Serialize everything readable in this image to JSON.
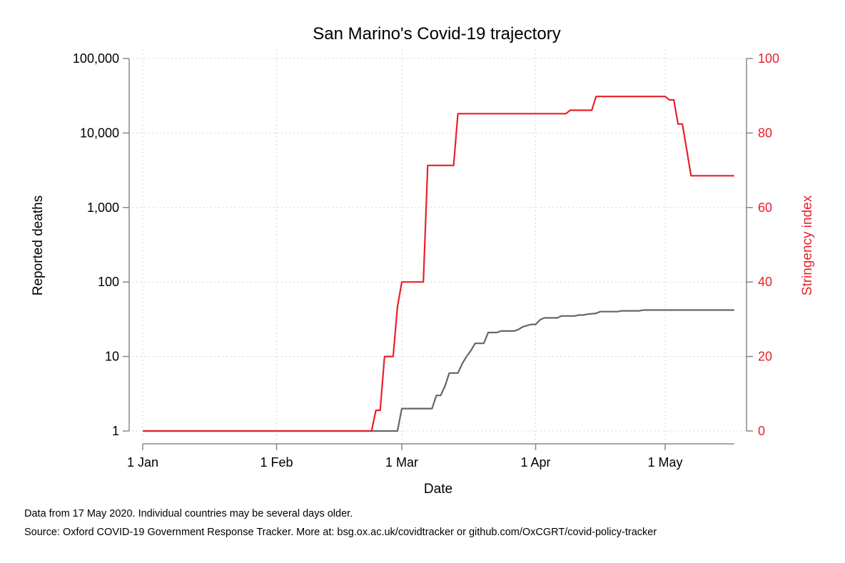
{
  "chart_data": {
    "type": "line",
    "title": "San Marino's Covid-19 trajectory",
    "xlabel": "Date",
    "ylabel_left": "Reported deaths",
    "ylabel_right": "Stringency index",
    "x_ticks": [
      {
        "date": "2020-01-01",
        "label": "1 Jan"
      },
      {
        "date": "2020-02-01",
        "label": "1 Feb"
      },
      {
        "date": "2020-03-01",
        "label": "1 Mar"
      },
      {
        "date": "2020-04-01",
        "label": "1 Apr"
      },
      {
        "date": "2020-05-01",
        "label": "1 May"
      }
    ],
    "xlim": [
      "2020-01-01",
      "2020-05-17"
    ],
    "y_left": {
      "scale": "log",
      "lim": [
        1,
        100000
      ],
      "ticks": [
        1,
        10,
        100,
        1000,
        10000,
        100000
      ],
      "tick_labels": [
        "1",
        "10",
        "100",
        "1,000",
        "10,000",
        "100,000"
      ]
    },
    "y_right": {
      "scale": "linear",
      "lim": [
        0,
        100
      ],
      "ticks": [
        0,
        20,
        40,
        60,
        80,
        100
      ],
      "tick_labels": [
        "0",
        "20",
        "40",
        "60",
        "80",
        "100"
      ]
    },
    "grid": true,
    "series": [
      {
        "axis": "left",
        "color": "#666666",
        "points": [
          [
            "2020-01-01",
            1
          ],
          [
            "2020-02-29",
            1
          ],
          [
            "2020-03-01",
            2
          ],
          [
            "2020-03-08",
            2
          ],
          [
            "2020-03-09",
            3
          ],
          [
            "2020-03-10",
            3
          ],
          [
            "2020-03-11",
            4
          ],
          [
            "2020-03-12",
            6
          ],
          [
            "2020-03-14",
            6
          ],
          [
            "2020-03-15",
            8
          ],
          [
            "2020-03-16",
            10
          ],
          [
            "2020-03-17",
            12
          ],
          [
            "2020-03-18",
            15
          ],
          [
            "2020-03-20",
            15
          ],
          [
            "2020-03-21",
            21
          ],
          [
            "2020-03-23",
            21
          ],
          [
            "2020-03-24",
            22
          ],
          [
            "2020-03-27",
            22
          ],
          [
            "2020-03-28",
            23
          ],
          [
            "2020-03-29",
            25
          ],
          [
            "2020-03-30",
            26
          ],
          [
            "2020-03-31",
            27
          ],
          [
            "2020-04-01",
            27
          ],
          [
            "2020-04-02",
            31
          ],
          [
            "2020-04-03",
            33
          ],
          [
            "2020-04-06",
            33
          ],
          [
            "2020-04-07",
            35
          ],
          [
            "2020-04-10",
            35
          ],
          [
            "2020-04-11",
            36
          ],
          [
            "2020-04-12",
            36
          ],
          [
            "2020-04-13",
            37
          ],
          [
            "2020-04-15",
            38
          ],
          [
            "2020-04-16",
            40
          ],
          [
            "2020-04-20",
            40
          ],
          [
            "2020-04-21",
            41
          ],
          [
            "2020-04-25",
            41
          ],
          [
            "2020-04-26",
            42
          ],
          [
            "2020-05-17",
            42
          ]
        ]
      },
      {
        "axis": "right",
        "color": "#e8202a",
        "points": [
          [
            "2020-01-01",
            0
          ],
          [
            "2020-02-23",
            0
          ],
          [
            "2020-02-24",
            5.56
          ],
          [
            "2020-02-25",
            5.56
          ],
          [
            "2020-02-26",
            20
          ],
          [
            "2020-02-28",
            20
          ],
          [
            "2020-02-29",
            33.33
          ],
          [
            "2020-03-01",
            40
          ],
          [
            "2020-03-06",
            40
          ],
          [
            "2020-03-07",
            71.3
          ],
          [
            "2020-03-13",
            71.3
          ],
          [
            "2020-03-14",
            85.19
          ],
          [
            "2020-04-08",
            85.19
          ],
          [
            "2020-04-09",
            86.11
          ],
          [
            "2020-04-14",
            86.11
          ],
          [
            "2020-04-15",
            89.81
          ],
          [
            "2020-05-01",
            89.81
          ],
          [
            "2020-05-02",
            88.89
          ],
          [
            "2020-05-03",
            88.89
          ],
          [
            "2020-05-04",
            82.41
          ],
          [
            "2020-05-05",
            82.41
          ],
          [
            "2020-05-07",
            68.52
          ],
          [
            "2020-05-17",
            68.52
          ]
        ]
      }
    ]
  },
  "notes": {
    "line1": "Data from 17 May 2020. Individual countries may be several days older.",
    "line2": "Source: Oxford COVID-19 Government Response Tracker. More at: bsg.ox.ac.uk/covidtracker or github.com/OxCGRT/covid-policy-tracker"
  }
}
